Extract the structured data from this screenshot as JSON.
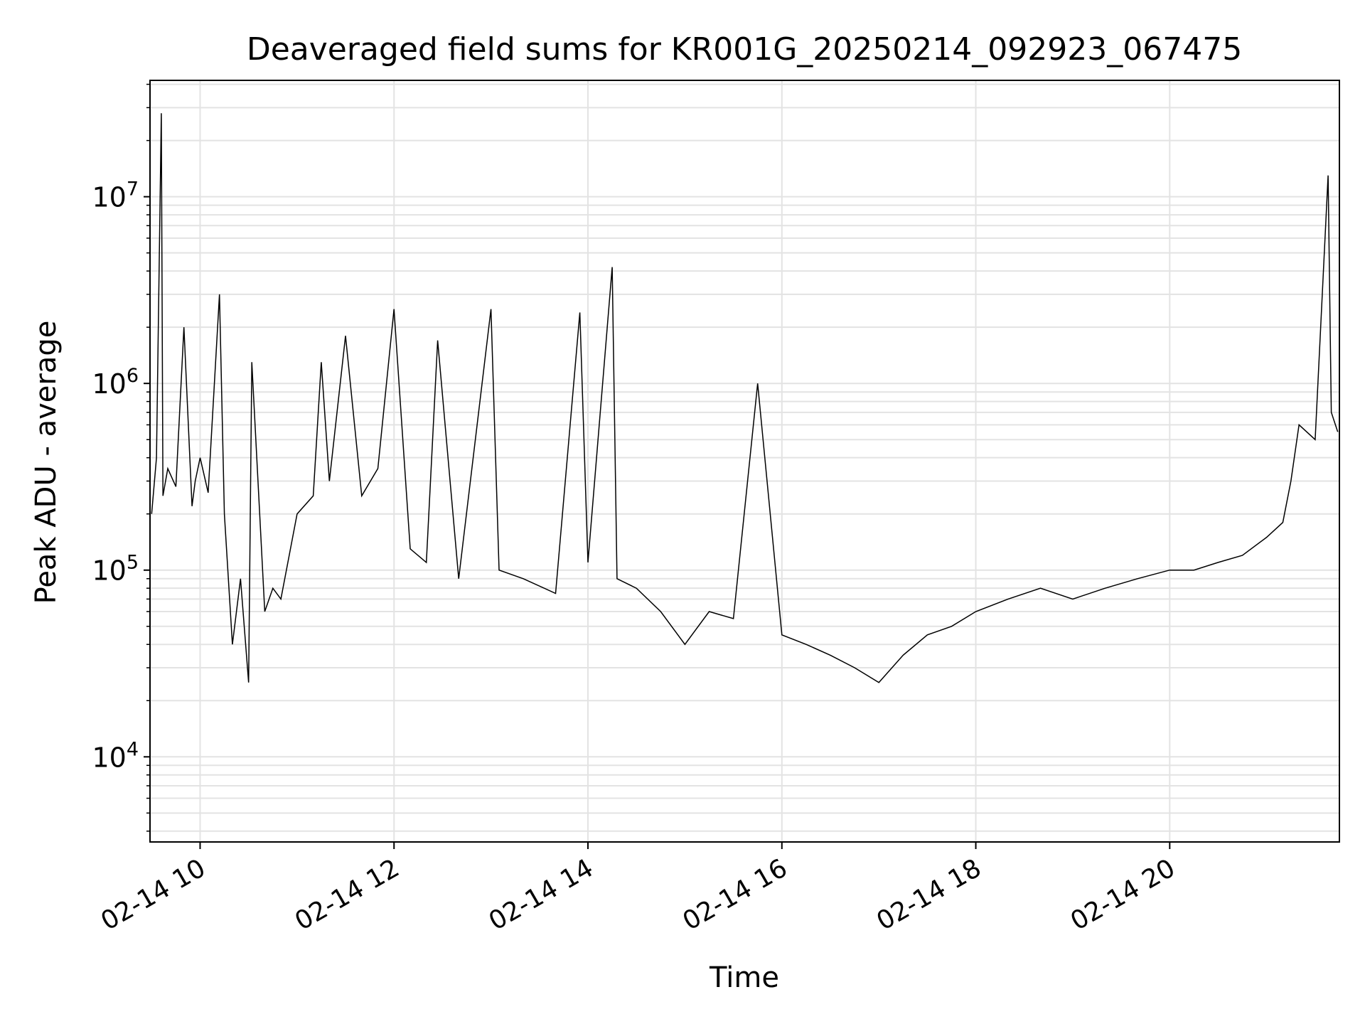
{
  "chart_data": {
    "type": "line",
    "title": "Deaveraged field sums for KR001G_20250214_092923_067475",
    "xlabel": "Time",
    "ylabel": "Peak ADU - average",
    "y_scale": "log",
    "ylim": [
      3500,
      42000000
    ],
    "xlim": [
      "02-14 09:29",
      "02-14 21:45"
    ],
    "x_ticks": [
      "02-14 10",
      "02-14 12",
      "02-14 14",
      "02-14 16",
      "02-14 18",
      "02-14 20"
    ],
    "y_ticks": [
      {
        "value": 10000,
        "base": "10",
        "exp": "4"
      },
      {
        "value": 100000,
        "base": "10",
        "exp": "5"
      },
      {
        "value": 1000000,
        "base": "10",
        "exp": "6"
      },
      {
        "value": 10000000,
        "base": "10",
        "exp": "7"
      }
    ],
    "grid": true,
    "line_color": "#000000",
    "series": [
      {
        "x": [
          "02-14 09:30",
          "02-14 09:33",
          "02-14 09:36",
          "02-14 09:37",
          "02-14 09:40",
          "02-14 09:45",
          "02-14 09:50",
          "02-14 09:55",
          "02-14 09:57",
          "02-14 10:00",
          "02-14 10:05",
          "02-14 10:12",
          "02-14 10:15",
          "02-14 10:20",
          "02-14 10:25",
          "02-14 10:30",
          "02-14 10:32",
          "02-14 10:40",
          "02-14 10:45",
          "02-14 10:50",
          "02-14 11:00",
          "02-14 11:10",
          "02-14 11:15",
          "02-14 11:20",
          "02-14 11:30",
          "02-14 11:40",
          "02-14 11:50",
          "02-14 12:00",
          "02-14 12:10",
          "02-14 12:20",
          "02-14 12:27",
          "02-14 12:40",
          "02-14 13:00",
          "02-14 13:05",
          "02-14 13:20",
          "02-14 13:40",
          "02-14 13:55",
          "02-14 14:00",
          "02-14 14:15",
          "02-14 14:18",
          "02-14 14:30",
          "02-14 14:45",
          "02-14 15:00",
          "02-14 15:15",
          "02-14 15:30",
          "02-14 15:45",
          "02-14 16:00",
          "02-14 16:15",
          "02-14 16:30",
          "02-14 16:45",
          "02-14 17:00",
          "02-14 17:15",
          "02-14 17:30",
          "02-14 17:45",
          "02-14 18:00",
          "02-14 18:20",
          "02-14 18:40",
          "02-14 19:00",
          "02-14 19:20",
          "02-14 19:40",
          "02-14 20:00",
          "02-14 20:15",
          "02-14 20:30",
          "02-14 20:45",
          "02-14 21:00",
          "02-14 21:10",
          "02-14 21:15",
          "02-14 21:20",
          "02-14 21:30",
          "02-14 21:38",
          "02-14 21:40",
          "02-14 21:44"
        ],
        "y": [
          200000,
          400000,
          28000000,
          250000,
          350000,
          280000,
          2000000,
          220000,
          300000,
          400000,
          260000,
          3000000,
          200000,
          40000,
          90000,
          25000,
          1300000,
          60000,
          80000,
          70000,
          200000,
          250000,
          1300000,
          300000,
          1800000,
          250000,
          350000,
          2500000,
          130000,
          110000,
          1700000,
          90000,
          2500000,
          100000,
          90000,
          75000,
          2400000,
          110000,
          4200000,
          90000,
          80000,
          60000,
          40000,
          60000,
          55000,
          1000000,
          45000,
          40000,
          35000,
          30000,
          25000,
          35000,
          45000,
          50000,
          60000,
          70000,
          80000,
          70000,
          80000,
          90000,
          100000,
          100000,
          110000,
          120000,
          150000,
          180000,
          300000,
          600000,
          500000,
          13000000,
          700000,
          550000
        ]
      }
    ]
  }
}
